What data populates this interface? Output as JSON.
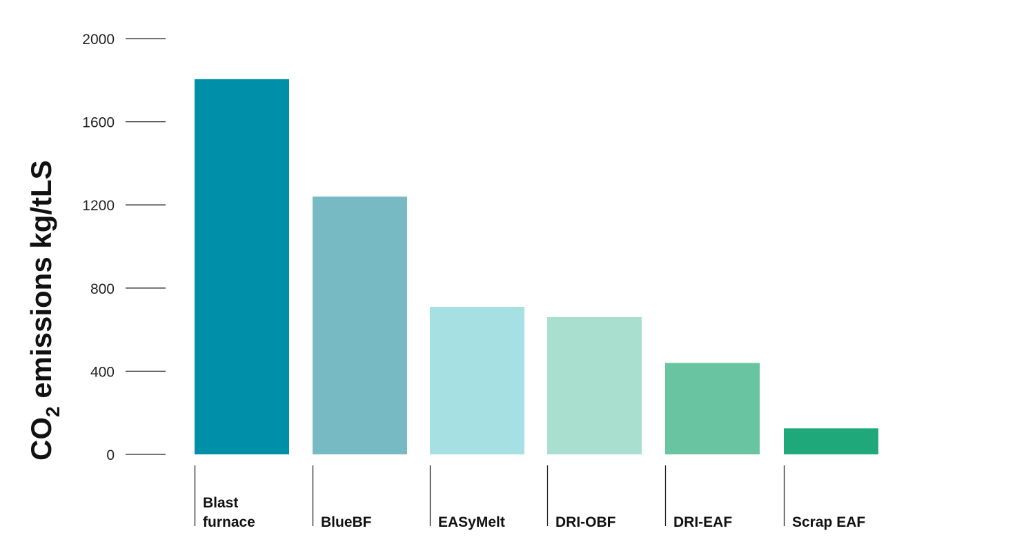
{
  "chart_data": {
    "type": "bar",
    "ylabel": {
      "main": "CO",
      "subscript": "2",
      "rest": " emissions kg/tLS"
    },
    "ylim": [
      0,
      2000
    ],
    "yticks": [
      0,
      400,
      800,
      1200,
      1600,
      2000
    ],
    "categories": [
      [
        "Blast",
        "furnace"
      ],
      [
        "BlueBF"
      ],
      [
        "EASyMelt"
      ],
      [
        "DRI-OBF"
      ],
      [
        "DRI-EAF"
      ],
      [
        "Scrap EAF"
      ]
    ],
    "values": [
      1805,
      1240,
      710,
      660,
      440,
      125
    ],
    "colors": [
      "#008fa9",
      "#78bac3",
      "#a6e0e3",
      "#a8dfce",
      "#68c4a1",
      "#1fa87a"
    ],
    "grid": false,
    "legend": "none"
  }
}
